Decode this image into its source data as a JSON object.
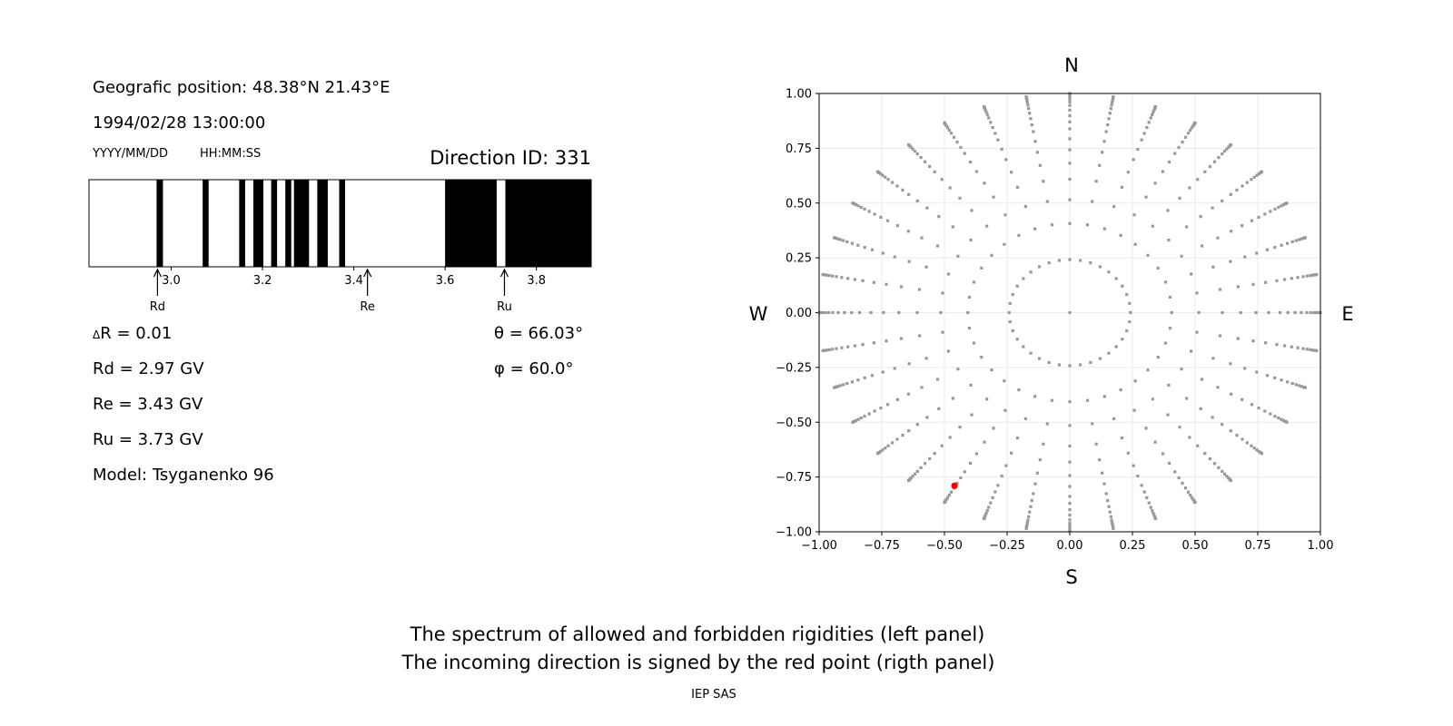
{
  "info": {
    "position": "Geografic position: 48.38°N 21.43°E",
    "datetime": "1994/02/28 13:00:00",
    "date_format": "YYYY/MM/DD",
    "time_format": "HH:MM:SS",
    "direction_id": "Direction ID: 331",
    "delta_r_symbol": "Δ",
    "delta_r": "R = 0.01",
    "rd": "Rd = 2.97 GV",
    "re": "Re = 3.43 GV",
    "ru": "Ru = 3.73 GV",
    "model": "Model: Tsyganenko 96",
    "theta": "θ = 66.03°",
    "phi": "φ = 60.0°"
  },
  "footer": {
    "line1": "The spectrum of allowed and forbidden rigidities (left panel)",
    "line2": "The incoming direction is signed by the red point (rigth panel)",
    "credit": "IEP SAS"
  },
  "chart_data": [
    {
      "type": "bar",
      "xlim": [
        2.82,
        3.92
      ],
      "xticks": [
        "3.0",
        "3.2",
        "3.4",
        "3.6",
        "3.8"
      ],
      "forbidden_bands": [
        [
          2.968,
          2.982
        ],
        [
          3.069,
          3.082
        ],
        [
          3.149,
          3.162
        ],
        [
          3.18,
          3.202
        ],
        [
          3.219,
          3.232
        ],
        [
          3.25,
          3.263
        ],
        [
          3.269,
          3.302
        ],
        [
          3.32,
          3.343
        ],
        [
          3.368,
          3.381
        ],
        [
          3.6,
          3.713
        ],
        [
          3.732,
          3.92
        ]
      ],
      "band_color": "#000000",
      "markers": [
        {
          "label": "Rd",
          "value": 2.97
        },
        {
          "label": "Re",
          "value": 3.43
        },
        {
          "label": "Ru",
          "value": 3.73
        }
      ]
    },
    {
      "type": "scatter",
      "xlim": [
        -1,
        1
      ],
      "ylim": [
        -1,
        1
      ],
      "xticks": [
        "−1.00",
        "−0.75",
        "−0.50",
        "−0.25",
        "0.00",
        "0.25",
        "0.50",
        "0.75",
        "1.00"
      ],
      "yticks": [
        "−1.00",
        "−0.75",
        "−0.50",
        "−0.25",
        "0.00",
        "0.25",
        "0.50",
        "0.75",
        "1.00"
      ],
      "grid": true,
      "compass": {
        "north": "N",
        "south": "S",
        "east": "E",
        "west": "W"
      },
      "grid_theta_deg": [
        14,
        24,
        31,
        37.5,
        43,
        48,
        52.5,
        57,
        60.5,
        64,
        67.5,
        71,
        74,
        77,
        80,
        83,
        86,
        90
      ],
      "grid_phi_step_deg": 10,
      "grid_point_color": "#999999",
      "selected": {
        "theta_deg": 66.03,
        "phi_deg": 60.0,
        "x": -0.46,
        "y": -0.79,
        "color": "#ff0000"
      }
    }
  ]
}
